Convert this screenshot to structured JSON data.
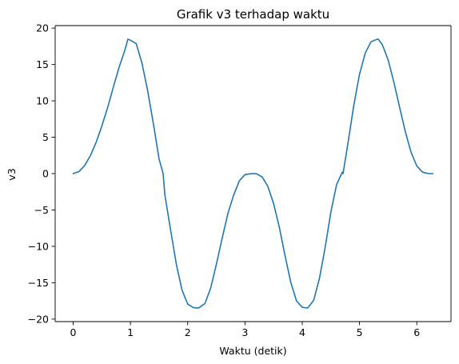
{
  "chart_data": {
    "type": "line",
    "title": "Grafik v3 terhadap waktu",
    "xlabel": "Waktu (detik)",
    "ylabel": "v3",
    "xlim": [
      -0.3142,
      6.5974
    ],
    "ylim": [
      -20.343,
      20.343
    ],
    "xticks": [
      0,
      1,
      2,
      3,
      4,
      5,
      6
    ],
    "yticks": [
      -20,
      -15,
      -10,
      -5,
      0,
      5,
      10,
      15,
      20
    ],
    "xtick_labels": [
      "0",
      "1",
      "2",
      "3",
      "4",
      "5",
      "6"
    ],
    "ytick_labels": [
      "−20",
      "−15",
      "−10",
      "−5",
      "0",
      "5",
      "10",
      "15",
      "20"
    ],
    "grid": false,
    "series": [
      {
        "color": "#1f77b4",
        "x": [
          0,
          0.1,
          0.2,
          0.3,
          0.4,
          0.5,
          0.6,
          0.7,
          0.8,
          0.9,
          0.955,
          1.0,
          1.1,
          1.2,
          1.3,
          1.4,
          1.5,
          1.5708,
          1.6,
          1.7,
          1.8,
          1.9,
          2.0,
          2.1,
          2.187,
          2.3,
          2.4,
          2.5,
          2.6,
          2.7,
          2.8,
          2.9,
          3.0,
          3.1,
          3.1416,
          3.2,
          3.3,
          3.4,
          3.5,
          3.6,
          3.7,
          3.8,
          3.9,
          4.0,
          4.096,
          4.2,
          4.3,
          4.4,
          4.5,
          4.6,
          4.7,
          4.7124,
          4.8,
          4.9,
          5.0,
          5.1,
          5.2,
          5.3,
          5.328,
          5.4,
          5.5,
          5.6,
          5.7,
          5.8,
          5.9,
          6.0,
          6.1,
          6.2,
          6.2832
        ],
        "y": [
          0,
          0.27,
          1.11,
          2.46,
          4.28,
          6.53,
          9.03,
          11.84,
          14.57,
          16.89,
          18.48,
          18.33,
          17.88,
          15.22,
          11.43,
          6.89,
          2.0,
          0,
          -2.86,
          -7.69,
          -12.4,
          -15.99,
          -17.95,
          -18.43,
          -18.48,
          -17.87,
          -15.77,
          -12.49,
          -8.94,
          -5.53,
          -2.99,
          -1.01,
          -0.13,
          -0.02,
          0,
          -0.02,
          -0.46,
          -1.77,
          -4.13,
          -7.39,
          -11.29,
          -14.95,
          -17.5,
          -18.37,
          -18.48,
          -17.4,
          -14.41,
          -10.14,
          -5.27,
          -1.5,
          0.21,
          0,
          4.27,
          9.38,
          13.66,
          16.57,
          18.12,
          18.44,
          18.48,
          17.69,
          15.62,
          12.56,
          9.11,
          5.76,
          2.94,
          1.05,
          0.2,
          0.01,
          0
        ]
      }
    ]
  }
}
